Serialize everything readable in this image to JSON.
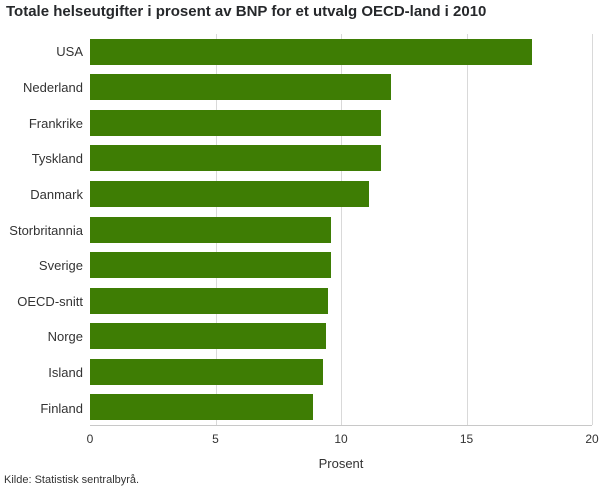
{
  "chart_data": {
    "type": "bar",
    "orientation": "horizontal",
    "title": "Totale helseutgifter i prosent av BNP for et utvalg OECD-land i 2010",
    "categories": [
      "USA",
      "Nederland",
      "Frankrike",
      "Tyskland",
      "Danmark",
      "Storbritannia",
      "Sverige",
      "OECD-snitt",
      "Norge",
      "Island",
      "Finland"
    ],
    "values": [
      17.6,
      12.0,
      11.6,
      11.6,
      11.1,
      9.6,
      9.6,
      9.5,
      9.4,
      9.3,
      8.9
    ],
    "xlabel": "Prosent",
    "xlim": [
      0,
      20
    ],
    "xticks": [
      0,
      5,
      10,
      15,
      20
    ],
    "grid": true,
    "legend": "none",
    "bar_color": "#3e7d04",
    "gridline_color": "#d9d9d9",
    "source": "Kilde: Statistisk sentralbyrå."
  }
}
